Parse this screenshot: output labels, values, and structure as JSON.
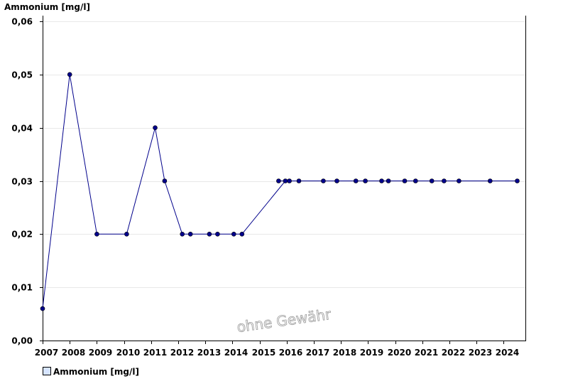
{
  "chart_data": {
    "type": "line",
    "title": "Ammonium [mg/l]",
    "ylabel": "Ammonium [mg/l]",
    "xlabel": "",
    "ylim": [
      0,
      0.06
    ],
    "xlim": [
      2007,
      2024.8
    ],
    "y_ticks": [
      "0,00",
      "0,01",
      "0,02",
      "0,03",
      "0,04",
      "0,05",
      "0,06"
    ],
    "x_ticks": [
      "2007",
      "2008",
      "2009",
      "2010",
      "2011",
      "2012",
      "2013",
      "2014",
      "2015",
      "2016",
      "2017",
      "2018",
      "2019",
      "2020",
      "2021",
      "2022",
      "2023",
      "2024"
    ],
    "grid": true,
    "legend": "bottom-left",
    "watermark": "ohne Gewähr",
    "colors": {
      "series": "#00008b",
      "line": "#00008b",
      "grid": "#e8e8e8",
      "legend_swatch": "#d6e4ff"
    },
    "series": [
      {
        "name": "Ammonium [mg/l]",
        "points": [
          {
            "x": 2007.0,
            "y": 0.006
          },
          {
            "x": 2008.0,
            "y": 0.05
          },
          {
            "x": 2009.0,
            "y": 0.02
          },
          {
            "x": 2010.1,
            "y": 0.02
          },
          {
            "x": 2011.15,
            "y": 0.04
          },
          {
            "x": 2011.5,
            "y": 0.03
          },
          {
            "x": 2012.15,
            "y": 0.02
          },
          {
            "x": 2012.45,
            "y": 0.02
          },
          {
            "x": 2013.15,
            "y": 0.02
          },
          {
            "x": 2013.45,
            "y": 0.02
          },
          {
            "x": 2014.05,
            "y": 0.02
          },
          {
            "x": 2014.35,
            "y": 0.02
          },
          {
            "x": 2015.95,
            "y": 0.03
          },
          {
            "x": 2015.7,
            "y": 0.03
          },
          {
            "x": 2016.1,
            "y": 0.03
          },
          {
            "x": 2016.45,
            "y": 0.03
          },
          {
            "x": 2017.35,
            "y": 0.03
          },
          {
            "x": 2017.85,
            "y": 0.03
          },
          {
            "x": 2018.55,
            "y": 0.03
          },
          {
            "x": 2018.9,
            "y": 0.03
          },
          {
            "x": 2019.5,
            "y": 0.03
          },
          {
            "x": 2019.75,
            "y": 0.03
          },
          {
            "x": 2020.35,
            "y": 0.03
          },
          {
            "x": 2020.75,
            "y": 0.03
          },
          {
            "x": 2021.35,
            "y": 0.03
          },
          {
            "x": 2021.8,
            "y": 0.03
          },
          {
            "x": 2022.35,
            "y": 0.03
          },
          {
            "x": 2023.5,
            "y": 0.03
          },
          {
            "x": 2024.5,
            "y": 0.03
          }
        ]
      }
    ]
  }
}
